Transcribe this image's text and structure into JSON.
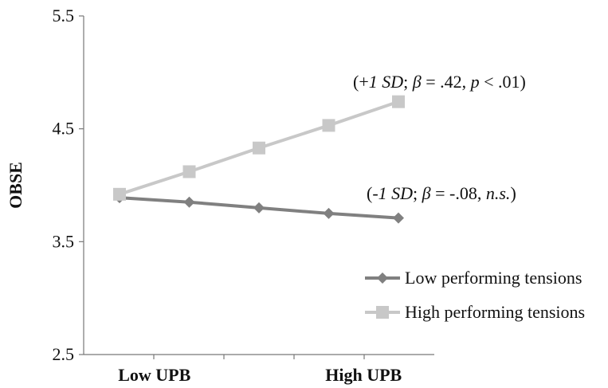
{
  "chart_data": {
    "type": "line",
    "title": "",
    "ylabel": "OBSE",
    "xlabel": "",
    "ylim": [
      2.5,
      5.5
    ],
    "yticks": [
      "2.5",
      "3.5",
      "4.5",
      "5.5"
    ],
    "x": [
      1,
      2,
      3,
      4,
      5
    ],
    "category_labels": [
      {
        "label": "Low UPB",
        "x": 1.5
      },
      {
        "label": "High UPB",
        "x": 4.5
      }
    ],
    "grid": false,
    "legend": "right",
    "series": [
      {
        "name": "Low performing tensions",
        "color": "#808080",
        "marker": "diamond",
        "values": [
          3.89,
          3.85,
          3.8,
          3.75,
          3.71
        ],
        "annotation": {
          "parts": [
            {
              "t": "(",
              "i": false
            },
            {
              "t": "-1 SD",
              "i": true
            },
            {
              "t": "; ",
              "i": false
            },
            {
              "t": "β",
              "i": true
            },
            {
              "t": " = -.08, ",
              "i": false
            },
            {
              "t": "n.s.",
              "i": true
            },
            {
              "t": ")",
              "i": false
            }
          ]
        }
      },
      {
        "name": "High performing tensions",
        "color": "#c8c8c8",
        "marker": "square",
        "values": [
          3.92,
          4.12,
          4.33,
          4.53,
          4.74
        ],
        "annotation": {
          "parts": [
            {
              "t": "(+",
              "i": false
            },
            {
              "t": "1 SD",
              "i": true
            },
            {
              "t": "; ",
              "i": false
            },
            {
              "t": "β",
              "i": true
            },
            {
              "t": " = .42, ",
              "i": false
            },
            {
              "t": "p",
              "i": true
            },
            {
              "t": " < .01)",
              "i": false
            }
          ]
        }
      }
    ]
  }
}
